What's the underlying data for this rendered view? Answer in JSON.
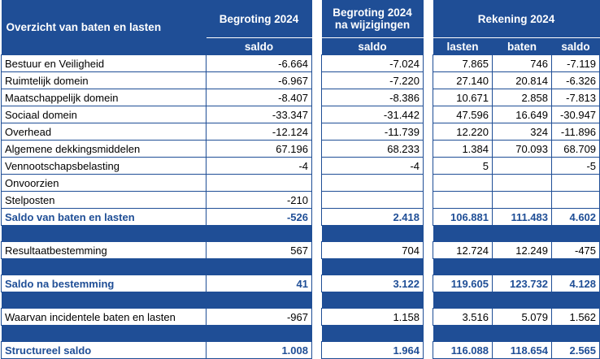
{
  "header": {
    "title": "Overzicht van baten en lasten",
    "col_begroting": "Begroting 2024",
    "col_wijziging_line1": "Begroting 2024",
    "col_wijziging_line2": "na wijzigingen",
    "col_rekening": "Rekening 2024",
    "sub_saldo_1": "saldo",
    "sub_saldo_2": "saldo",
    "sub_lasten": "lasten",
    "sub_baten": "baten",
    "sub_saldo_3": "saldo"
  },
  "rows": [
    {
      "label": "Bestuur en Veiligheid",
      "begroting": "-6.664",
      "wijziging": "-7.024",
      "lasten": "7.865",
      "baten": "746",
      "saldo": "-7.119"
    },
    {
      "label": "Ruimtelijk domein",
      "begroting": "-6.967",
      "wijziging": "-7.220",
      "lasten": "27.140",
      "baten": "20.814",
      "saldo": "-6.326"
    },
    {
      "label": "Maatschappelijk domein",
      "begroting": "-8.407",
      "wijziging": "-8.386",
      "lasten": "10.671",
      "baten": "2.858",
      "saldo": "-7.813"
    },
    {
      "label": "Sociaal domein",
      "begroting": "-33.347",
      "wijziging": "-31.442",
      "lasten": "47.596",
      "baten": "16.649",
      "saldo": "-30.947"
    },
    {
      "label": "Overhead",
      "begroting": "-12.124",
      "wijziging": "-11.739",
      "lasten": "12.220",
      "baten": "324",
      "saldo": "-11.896"
    },
    {
      "label": "Algemene dekkingsmiddelen",
      "begroting": "67.196",
      "wijziging": "68.233",
      "lasten": "1.384",
      "baten": "70.093",
      "saldo": "68.709"
    },
    {
      "label": "Vennootschapsbelasting",
      "begroting": "-4",
      "wijziging": "-4",
      "lasten": "5",
      "baten": "",
      "saldo": "-5"
    },
    {
      "label": "Onvoorzien",
      "begroting": "",
      "wijziging": "",
      "lasten": "",
      "baten": "",
      "saldo": ""
    },
    {
      "label": "Stelposten",
      "begroting": "-210",
      "wijziging": "",
      "lasten": "",
      "baten": "",
      "saldo": ""
    }
  ],
  "saldo_baten_lasten": {
    "label": "Saldo van baten en lasten",
    "begroting": "-526",
    "wijziging": "2.418",
    "lasten": "106.881",
    "baten": "111.483",
    "saldo": "4.602"
  },
  "resultaatbestemming": {
    "label": "Resultaatbestemming",
    "begroting": "567",
    "wijziging": "704",
    "lasten": "12.724",
    "baten": "12.249",
    "saldo": "-475"
  },
  "saldo_na_bestemming": {
    "label": "Saldo na bestemming",
    "begroting": "41",
    "wijziging": "3.122",
    "lasten": "119.605",
    "baten": "123.732",
    "saldo": "4.128"
  },
  "incidentele": {
    "label": "Waarvan incidentele baten en lasten",
    "begroting": "-967",
    "wijziging": "1.158",
    "lasten": "3.516",
    "baten": "5.079",
    "saldo": "1.562"
  },
  "structureel": {
    "label": "Structureel saldo",
    "begroting": "1.008",
    "wijziging": "1.964",
    "lasten": "116.088",
    "baten": "118.654",
    "saldo": "2.565"
  },
  "colors": {
    "header_blue": "#1f4e96",
    "sum_text": "#1f4e96"
  }
}
